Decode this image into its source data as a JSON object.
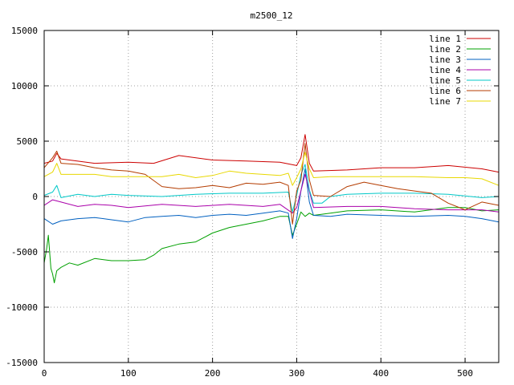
{
  "chart_data": {
    "type": "line",
    "title": "m2500_12",
    "xlabel": "",
    "ylabel": "",
    "xlim": [
      0,
      540
    ],
    "ylim": [
      -15000,
      15000
    ],
    "xticks": [
      0,
      100,
      200,
      300,
      400,
      500
    ],
    "yticks": [
      -15000,
      -10000,
      -5000,
      0,
      5000,
      10000,
      15000
    ],
    "grid": true,
    "legend_position": "top-right",
    "series": [
      {
        "name": "line 1",
        "color": "#cc0000",
        "x": [
          0,
          10,
          15,
          20,
          30,
          60,
          100,
          130,
          160,
          200,
          240,
          280,
          300,
          305,
          310,
          315,
          320,
          360,
          400,
          440,
          480,
          520,
          540
        ],
        "y": [
          3000,
          3200,
          3900,
          3400,
          3300,
          3000,
          3100,
          3000,
          3700,
          3300,
          3200,
          3100,
          2800,
          3500,
          5600,
          3000,
          2300,
          2400,
          2600,
          2600,
          2800,
          2500,
          2200
        ]
      },
      {
        "name": "line 2",
        "color": "#00a000",
        "x": [
          0,
          3,
          5,
          8,
          10,
          12,
          15,
          20,
          30,
          40,
          60,
          80,
          100,
          120,
          130,
          140,
          160,
          180,
          200,
          220,
          240,
          260,
          280,
          290,
          295,
          300,
          305,
          310,
          315,
          320,
          340,
          360,
          400,
          440,
          480,
          500,
          520,
          540
        ],
        "y": [
          -6000,
          -4700,
          -3500,
          -6500,
          -7000,
          -7800,
          -6700,
          -6400,
          -6000,
          -6200,
          -5600,
          -5800,
          -5800,
          -5700,
          -5300,
          -4700,
          -4300,
          -4100,
          -3300,
          -2800,
          -2500,
          -2200,
          -1800,
          -1800,
          -3500,
          -2500,
          -1400,
          -1800,
          -1500,
          -1700,
          -1500,
          -1300,
          -1200,
          -1400,
          -1000,
          -1000,
          -1300,
          -1200
        ]
      },
      {
        "name": "line 3",
        "color": "#0060c0",
        "x": [
          0,
          10,
          20,
          40,
          60,
          80,
          100,
          120,
          140,
          160,
          180,
          200,
          220,
          240,
          260,
          280,
          290,
          295,
          300,
          305,
          310,
          315,
          320,
          340,
          360,
          400,
          440,
          480,
          500,
          520,
          540
        ],
        "y": [
          -2000,
          -2500,
          -2200,
          -2000,
          -1900,
          -2100,
          -2300,
          -1900,
          -1800,
          -1700,
          -1900,
          -1700,
          -1600,
          -1700,
          -1500,
          -1300,
          -1500,
          -3800,
          -2000,
          500,
          2500,
          -500,
          -1700,
          -1800,
          -1600,
          -1700,
          -1800,
          -1700,
          -1800,
          -2000,
          -2300
        ]
      },
      {
        "name": "line 4",
        "color": "#aa00aa",
        "x": [
          0,
          10,
          20,
          40,
          60,
          80,
          100,
          140,
          180,
          220,
          260,
          280,
          295,
          300,
          310,
          320,
          360,
          400,
          440,
          480,
          520,
          540
        ],
        "y": [
          -800,
          -300,
          -500,
          -900,
          -700,
          -800,
          -1000,
          -700,
          -900,
          -700,
          -900,
          -700,
          -1500,
          -1000,
          2000,
          -1000,
          -900,
          -900,
          -1100,
          -1200,
          -1200,
          -1400
        ]
      },
      {
        "name": "line 5",
        "color": "#00c8c8",
        "x": [
          0,
          10,
          15,
          20,
          40,
          60,
          80,
          100,
          140,
          180,
          220,
          260,
          290,
          295,
          300,
          305,
          310,
          315,
          320,
          330,
          340,
          360,
          400,
          440,
          480,
          520,
          540
        ],
        "y": [
          100,
          400,
          1000,
          -100,
          200,
          0,
          200,
          100,
          0,
          200,
          300,
          300,
          400,
          -1400,
          100,
          2000,
          2900,
          600,
          -600,
          -600,
          0,
          200,
          300,
          300,
          200,
          -100,
          0
        ]
      },
      {
        "name": "line 6",
        "color": "#b43c00",
        "x": [
          0,
          10,
          15,
          20,
          40,
          60,
          80,
          100,
          120,
          140,
          160,
          180,
          200,
          220,
          240,
          260,
          280,
          290,
          295,
          300,
          305,
          310,
          315,
          320,
          340,
          360,
          380,
          400,
          420,
          440,
          460,
          480,
          500,
          520,
          540
        ],
        "y": [
          2600,
          3500,
          4100,
          3000,
          2900,
          2600,
          2400,
          2300,
          2000,
          900,
          700,
          800,
          1000,
          800,
          1200,
          1100,
          1300,
          1000,
          -2500,
          500,
          1500,
          4800,
          1500,
          100,
          0,
          900,
          1300,
          1000,
          700,
          500,
          300,
          -600,
          -1200,
          -500,
          -800
        ]
      },
      {
        "name": "line 7",
        "color": "#e8d800",
        "x": [
          0,
          10,
          15,
          20,
          40,
          60,
          80,
          100,
          120,
          140,
          160,
          180,
          200,
          220,
          240,
          260,
          280,
          290,
          295,
          300,
          305,
          310,
          315,
          320,
          340,
          360,
          400,
          440,
          480,
          500,
          520,
          540
        ],
        "y": [
          1800,
          2200,
          3000,
          2000,
          2000,
          2000,
          1800,
          1800,
          1800,
          1800,
          2000,
          1700,
          1900,
          2300,
          2100,
          2000,
          1900,
          2100,
          1000,
          1700,
          2500,
          4000,
          2500,
          1700,
          1800,
          1800,
          1800,
          1800,
          1700,
          1700,
          1600,
          1000
        ]
      }
    ]
  }
}
